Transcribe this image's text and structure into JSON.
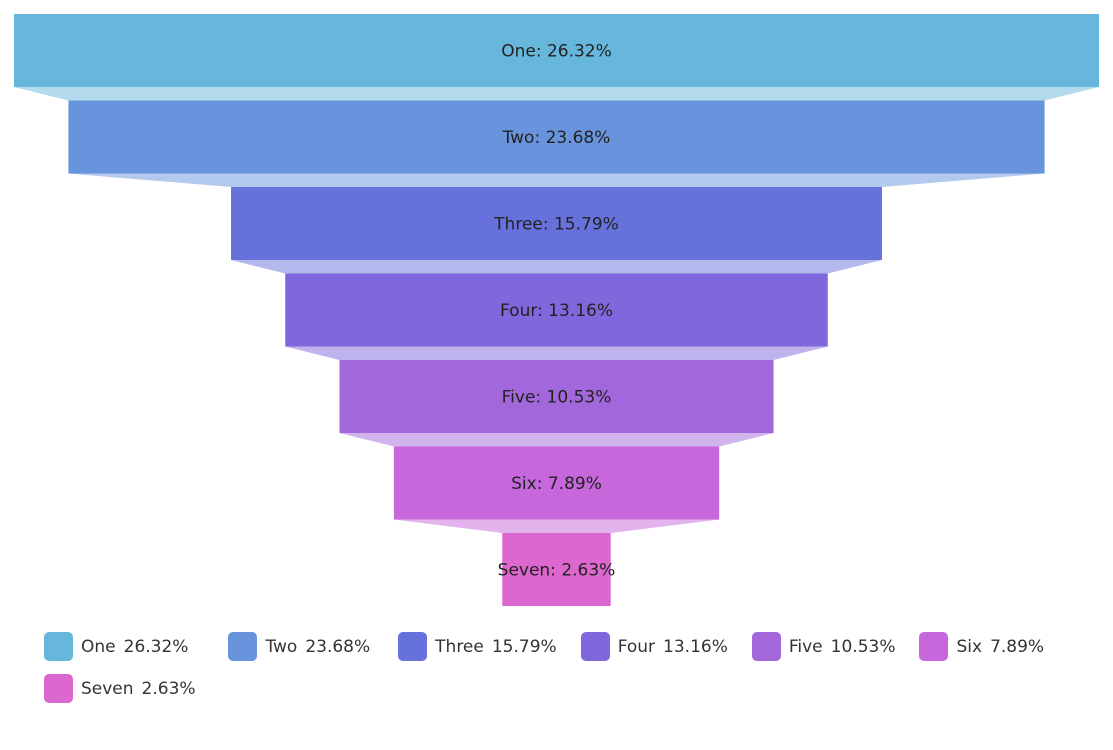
{
  "chart_data": {
    "type": "funnel",
    "title": "",
    "categories": [
      "One",
      "Two",
      "Three",
      "Four",
      "Five",
      "Six",
      "Seven"
    ],
    "values": [
      26.32,
      23.68,
      15.79,
      13.16,
      10.53,
      7.89,
      2.63
    ],
    "labels": [
      "One: 26.32%",
      "Two: 23.68%",
      "Three: 15.79%",
      "Four: 13.16%",
      "Five: 10.53%",
      "Six: 7.89%",
      "Seven: 2.63%"
    ],
    "legend_values": [
      "26.32%",
      "23.68%",
      "15.79%",
      "13.16%",
      "10.53%",
      "7.89%",
      "2.63%"
    ],
    "colors": [
      "#67b7dc",
      "#6794dc",
      "#6771dc",
      "#8067dc",
      "#a367dc",
      "#c767dc",
      "#dc67ce"
    ],
    "legend_position": "bottom"
  }
}
